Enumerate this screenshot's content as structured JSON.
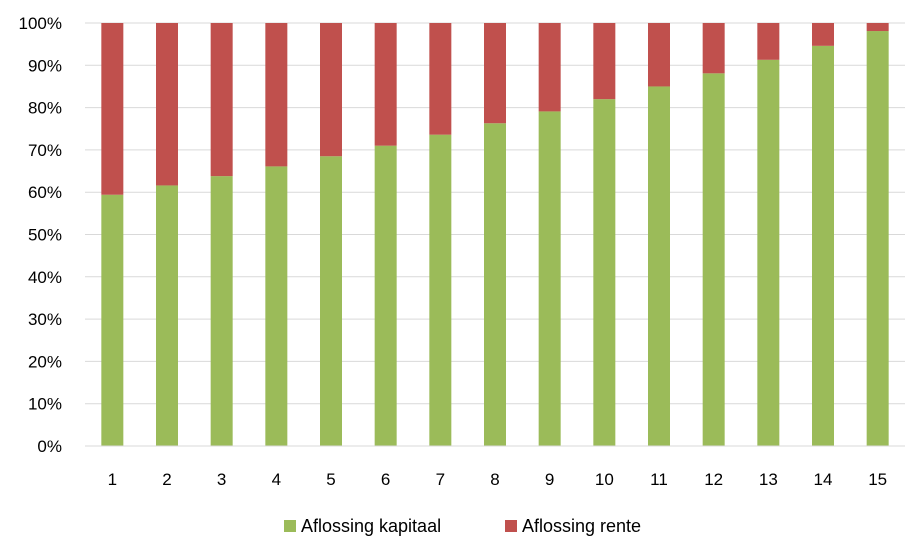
{
  "chart_data": {
    "type": "bar",
    "stacked": true,
    "normalized": true,
    "categories": [
      "1",
      "2",
      "3",
      "4",
      "5",
      "6",
      "7",
      "8",
      "9",
      "10",
      "11",
      "12",
      "13",
      "14",
      "15"
    ],
    "series": [
      {
        "name": "Aflossing kapitaal",
        "color": "#9BBB59",
        "values": [
          59.4,
          61.6,
          63.8,
          66.1,
          68.5,
          71.0,
          73.6,
          76.3,
          79.1,
          82.0,
          85.0,
          88.1,
          91.3,
          94.6,
          98.1
        ]
      },
      {
        "name": "Aflossing rente",
        "color": "#C0504D",
        "values": [
          40.6,
          38.4,
          36.2,
          33.9,
          31.5,
          29.0,
          26.4,
          23.7,
          20.9,
          18.0,
          15.0,
          11.9,
          8.7,
          5.4,
          1.9
        ]
      }
    ],
    "ylim": [
      0,
      100
    ],
    "yticks": [
      "0%",
      "10%",
      "20%",
      "30%",
      "40%",
      "50%",
      "60%",
      "70%",
      "80%",
      "90%",
      "100%"
    ],
    "grid": true,
    "legend_position": "bottom"
  }
}
